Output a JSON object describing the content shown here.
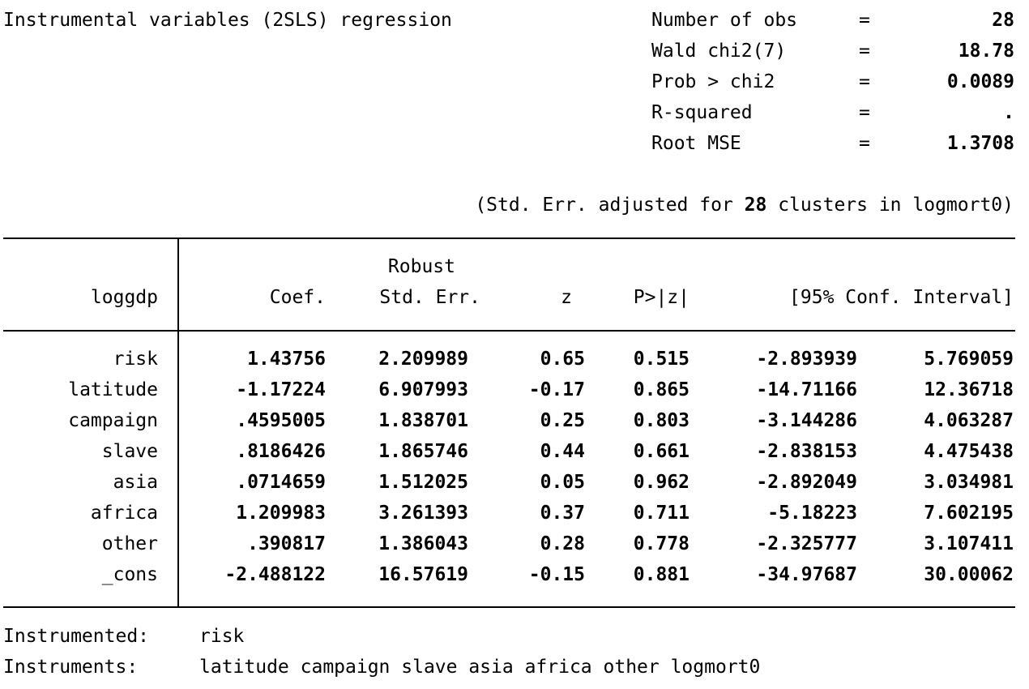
{
  "header": {
    "title": "Instrumental variables (2SLS) regression",
    "stats": [
      {
        "label": "Number of obs",
        "eq": "=",
        "value": "28"
      },
      {
        "label": "Wald chi2(7)",
        "eq": "=",
        "value": "18.78"
      },
      {
        "label": "Prob > chi2",
        "eq": "=",
        "value": "0.0089"
      },
      {
        "label": "R-squared",
        "eq": "=",
        "value": "."
      },
      {
        "label": "Root MSE",
        "eq": "=",
        "value": "1.3708"
      }
    ],
    "cluster_note_prefix": "(Std. Err. adjusted for ",
    "cluster_count": "28",
    "cluster_note_suffix": " clusters in logmort0)"
  },
  "table": {
    "depvar": "loggdp",
    "col_headers": {
      "robust": "Robust",
      "coef": "Coef.",
      "se": "Std. Err.",
      "z": "z",
      "p": "P>|z|",
      "ci": "[95% Conf. Interval]"
    },
    "rows": [
      {
        "var": "risk",
        "coef": "1.43756",
        "se": "2.209989",
        "z": "0.65",
        "p": "0.515",
        "lo": "-2.893939",
        "hi": "5.769059"
      },
      {
        "var": "latitude",
        "coef": "-1.17224",
        "se": "6.907993",
        "z": "-0.17",
        "p": "0.865",
        "lo": "-14.71166",
        "hi": "12.36718"
      },
      {
        "var": "campaign",
        "coef": ".4595005",
        "se": "1.838701",
        "z": "0.25",
        "p": "0.803",
        "lo": "-3.144286",
        "hi": "4.063287"
      },
      {
        "var": "slave",
        "coef": ".8186426",
        "se": "1.865746",
        "z": "0.44",
        "p": "0.661",
        "lo": "-2.838153",
        "hi": "4.475438"
      },
      {
        "var": "asia",
        "coef": ".0714659",
        "se": "1.512025",
        "z": "0.05",
        "p": "0.962",
        "lo": "-2.892049",
        "hi": "3.034981"
      },
      {
        "var": "africa",
        "coef": "1.209983",
        "se": "3.261393",
        "z": "0.37",
        "p": "0.711",
        "lo": "-5.18223",
        "hi": "7.602195"
      },
      {
        "var": "other",
        "coef": ".390817",
        "se": "1.386043",
        "z": "0.28",
        "p": "0.778",
        "lo": "-2.325777",
        "hi": "3.107411"
      },
      {
        "var": "_cons",
        "coef": "-2.488122",
        "se": "16.57619",
        "z": "-0.15",
        "p": "0.881",
        "lo": "-34.97687",
        "hi": "30.00062"
      }
    ]
  },
  "footer": {
    "instrumented_label": "Instrumented:",
    "instrumented_value": "risk",
    "instruments_label": "Instruments:",
    "instruments_value": "latitude campaign slave asia africa other logmort0"
  }
}
